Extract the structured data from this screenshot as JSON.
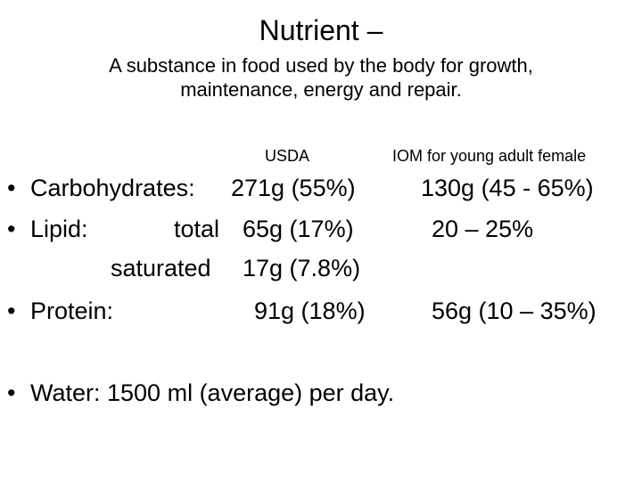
{
  "title": "Nutrient –",
  "subtitle": "A substance in food used by the body for growth, maintenance, energy and repair.",
  "headers": {
    "usda": "USDA",
    "iom": "IOM for young adult female"
  },
  "bullet_char": "•",
  "rows": {
    "carbohydrates": {
      "label": "Carbohydrates:",
      "usda": "271g (55%)",
      "iom": "130g (45 - 65%)"
    },
    "lipid": {
      "label": "Lipid:",
      "sublabel": "total",
      "usda": "65g (17%)",
      "iom": "20 – 25%"
    },
    "saturated": {
      "sublabel": "saturated",
      "usda": "17g (7.8%)"
    },
    "protein": {
      "label": "Protein:",
      "usda": "91g (18%)",
      "iom": "56g (10 – 35%)"
    },
    "water": {
      "text": "Water: 1500 ml (average) per day."
    }
  }
}
